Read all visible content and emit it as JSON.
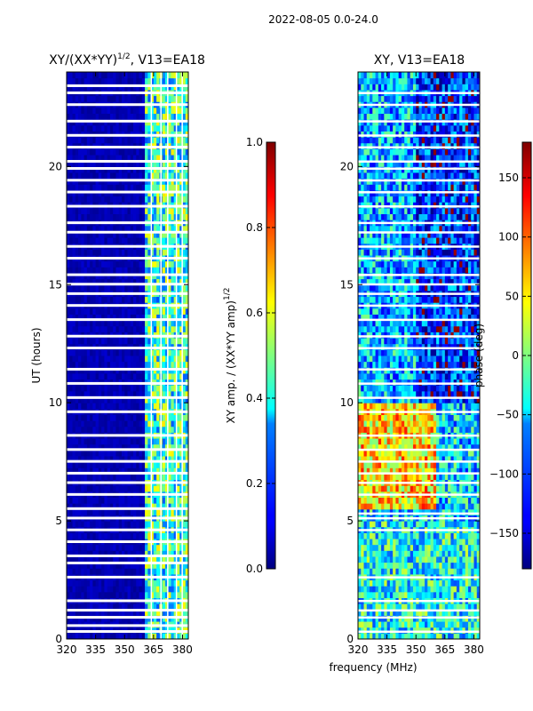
{
  "suptitle": "2022-08-05 0.0-24.0",
  "xlabel_shared": "frequency (MHz)",
  "chart_data": [
    {
      "type": "heatmap",
      "title": "XY/(XX*YY)",
      "title_sup": "1/2",
      "title_suffix": ", V13=EA18",
      "ylabel": "UT (hours)",
      "xlim": [
        320,
        383
      ],
      "ylim": [
        0,
        24
      ],
      "x_ticks": [
        320,
        335,
        350,
        365,
        380
      ],
      "y_ticks": [
        0,
        5,
        10,
        15,
        20
      ],
      "colorbar": {
        "label": "XY amp. / (XX*YY amp)",
        "label_sup": "1/2",
        "range": [
          0.0,
          1.0
        ],
        "ticks": [
          "0.0",
          "0.2",
          "0.4",
          "0.6",
          "0.8",
          "1.0"
        ],
        "tick_values": [
          0.0,
          0.2,
          0.4,
          0.6,
          0.8,
          1.0
        ],
        "colormap": "jet"
      },
      "background_value": 0.05,
      "bright_band_freq_mhz": [
        360,
        382
      ],
      "bright_band_value_range": [
        0.2,
        0.65
      ],
      "flagged_rows_ut": [
        0.3,
        0.55,
        0.9,
        1.2,
        1.6,
        2.6,
        3.2,
        3.5,
        4.1,
        4.6,
        5.1,
        5.5,
        6.1,
        6.6,
        7.0,
        7.5,
        8.0,
        8.6,
        9.6,
        10.2,
        10.8,
        11.4,
        12.3,
        12.8,
        13.5,
        14.1,
        14.6,
        15.0,
        15.4,
        16.1,
        16.6,
        17.2,
        17.6,
        18.3,
        18.9,
        19.4,
        19.9,
        20.2,
        20.8,
        21.3,
        21.9,
        22.6,
        23.1,
        23.4
      ],
      "flagged_columns_mhz": [
        363.5,
        368.5,
        372.0,
        376.5,
        379.5
      ]
    },
    {
      "type": "heatmap",
      "title": "XY, V13=EA18",
      "xlim": [
        320,
        383
      ],
      "ylim": [
        0,
        24
      ],
      "x_ticks": [
        320,
        335,
        350,
        365,
        380
      ],
      "y_ticks": [
        0,
        5,
        10,
        15,
        20
      ],
      "colorbar": {
        "label": "phase (deg)",
        "range": [
          -180,
          180
        ],
        "ticks": [
          "−150",
          "−100",
          "−50",
          "0",
          "50",
          "100",
          "150"
        ],
        "tick_values": [
          -150,
          -100,
          -50,
          0,
          50,
          100,
          150
        ],
        "colormap": "jet"
      },
      "phase_regions": [
        {
          "ut": [
            5.5,
            10.0
          ],
          "freq_mhz": [
            320,
            360
          ],
          "phase_deg": 60
        },
        {
          "ut": [
            0.0,
            5.0
          ],
          "freq_mhz": [
            320,
            383
          ],
          "phase_deg": -40
        },
        {
          "ut": [
            10.0,
            24.0
          ],
          "freq_mhz": [
            320,
            350
          ],
          "phase_deg": -70
        },
        {
          "ut": [
            10.0,
            24.0
          ],
          "freq_mhz": [
            350,
            383
          ],
          "phase_deg": -120
        }
      ],
      "flagged_rows_ut": [
        0.3,
        0.9,
        1.2,
        1.6,
        2.6,
        4.6,
        5.1,
        5.3,
        6.1,
        6.6,
        7.0,
        7.5,
        8.0,
        8.6,
        9.6,
        10.2,
        10.8,
        11.4,
        12.3,
        12.8,
        13.5,
        14.1,
        14.6,
        15.0,
        15.4,
        16.1,
        16.6,
        17.2,
        17.6,
        18.3,
        18.9,
        19.4,
        19.9,
        20.2,
        20.8,
        21.3,
        21.9,
        22.6,
        23.1
      ]
    }
  ]
}
